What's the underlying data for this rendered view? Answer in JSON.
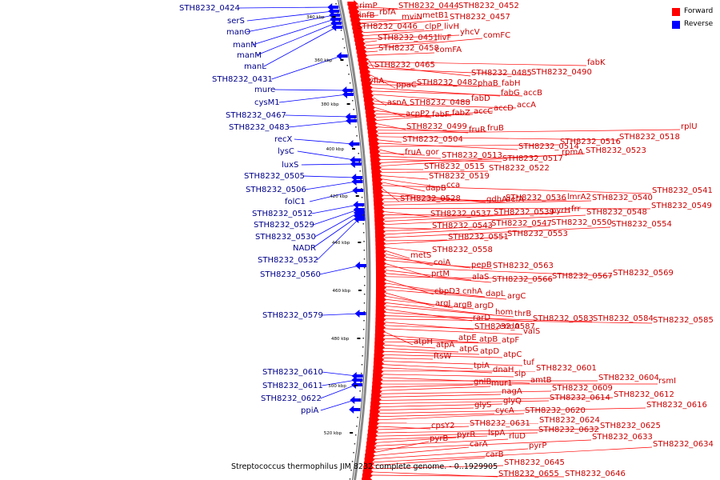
{
  "legend": [
    {
      "label": "Forward",
      "color": "#ff0000"
    },
    {
      "label": "Reverse",
      "color": "#0000ff"
    }
  ],
  "caption": "Streptococcus thermophilus JIM 8232 complete genome. - 0..1929905",
  "ticks": [
    "340 kbp",
    "360 kbp",
    "380 kbp",
    "400 kbp",
    "420 kbp",
    "440 kbp",
    "460 kbp",
    "480 kbp",
    "500 kbp",
    "520 kbp"
  ],
  "reverse_labels": [
    "STH8232_0424",
    "serS",
    "manO",
    "manN",
    "manM",
    "manL",
    "STH8232_0431",
    "mure",
    "cysM1",
    "STH8232_0467",
    "STH8232_0483",
    "recX",
    "lysC",
    "luxS",
    "STH8232_0505",
    "STH8232_0506",
    "folC1",
    "STH8232_0512",
    "STH8232_0529",
    "STH8232_0530",
    "NADR",
    "STH8232_0532",
    "STH8232_0560",
    "STH8232_0579",
    "STH8232_0610",
    "STH8232_0611",
    "STH8232_0622",
    "ppiA"
  ],
  "forward_labels": [
    "rimP",
    "STH8232_0444",
    "STH8232_0452",
    "infB",
    "rbfA",
    "mviN",
    "metB1",
    "STH8232_0457",
    "STH8232_0446",
    "clpP",
    "livH",
    "yhcV",
    "STH8232_0451",
    "livF",
    "comFC",
    "STH8232_0458",
    "comFA",
    "STH8232_0465",
    "fabK",
    "STH8232_0485",
    "STH8232_0490",
    "yfiA",
    "ppaC",
    "STH8232_0482",
    "phaB",
    "fabH",
    "fabG",
    "accB",
    "fabD",
    "asnA",
    "STH8232_0488",
    "accA",
    "acpP2",
    "fabF",
    "fabZ",
    "accC",
    "accD",
    "STH8232_0499",
    "fruR",
    "fruB",
    "rplU",
    "STH8232_0518",
    "STH8232_0504",
    "STH8232_0514",
    "STH8232_0516",
    "fruA",
    "gor",
    "STH8232_0513",
    "STH8232_0517",
    "rpmA",
    "STH8232_0523",
    "STH8232_0515",
    "STH8232_0522",
    "STH8232_0519",
    "cca",
    "dapB",
    "STH8232_0541",
    "STH8232_0528",
    "gdhA",
    "defA",
    "STH8232_0536",
    "lmrA2",
    "STH8232_0540",
    "STH8232_0549",
    "STH8232_0537",
    "STH8232_0539",
    "pyrH",
    "frr",
    "STH8232_0548",
    "STH8232_0543",
    "STH8232_0547",
    "STH8232_0550",
    "STH8232_0554",
    "STH8232_0551",
    "STH8232_0553",
    "STH8232_0558",
    "metS",
    "coiA",
    "pepB",
    "STH8232_0563",
    "prtM",
    "STH8232_0569",
    "alaS",
    "STH8232_0566",
    "STH8232_0567",
    "cbpD3",
    "cnhA",
    "dapL",
    "argC",
    "argJ",
    "argB",
    "argD",
    "hom",
    "thrB",
    "rarD",
    "STH8232_0583",
    "STH8232_0584",
    "STH8232_0585",
    "STH8232_0587",
    "endA",
    "valS",
    "atpH",
    "atpE",
    "atpB",
    "atpF",
    "atpA",
    "atpG",
    "atpD",
    "atpC",
    "ftsW",
    "tuf",
    "tpiA",
    "dnaH",
    "STH8232_0601",
    "sip",
    "amtB",
    "STH8232_0604",
    "rsmI",
    "gnlB",
    "mur1",
    "STH8232_0609",
    "nagA",
    "STH8232_0612",
    "STH8232_0614",
    "glyQ",
    "glyS",
    "STH8232_0616",
    "cycA",
    "STH8232_0620",
    "STH8232_0624",
    "cpsY2",
    "STH8232_0631",
    "STH8232_0625",
    "STH8232_0632",
    "lspA",
    "pyrR",
    "rluD",
    "STH8232_0633",
    "pyrB",
    "carA",
    "pyrP",
    "STH8232_0634",
    "carB",
    "STH8232_0645",
    "STH8232_0655",
    "STH8232_0646"
  ]
}
